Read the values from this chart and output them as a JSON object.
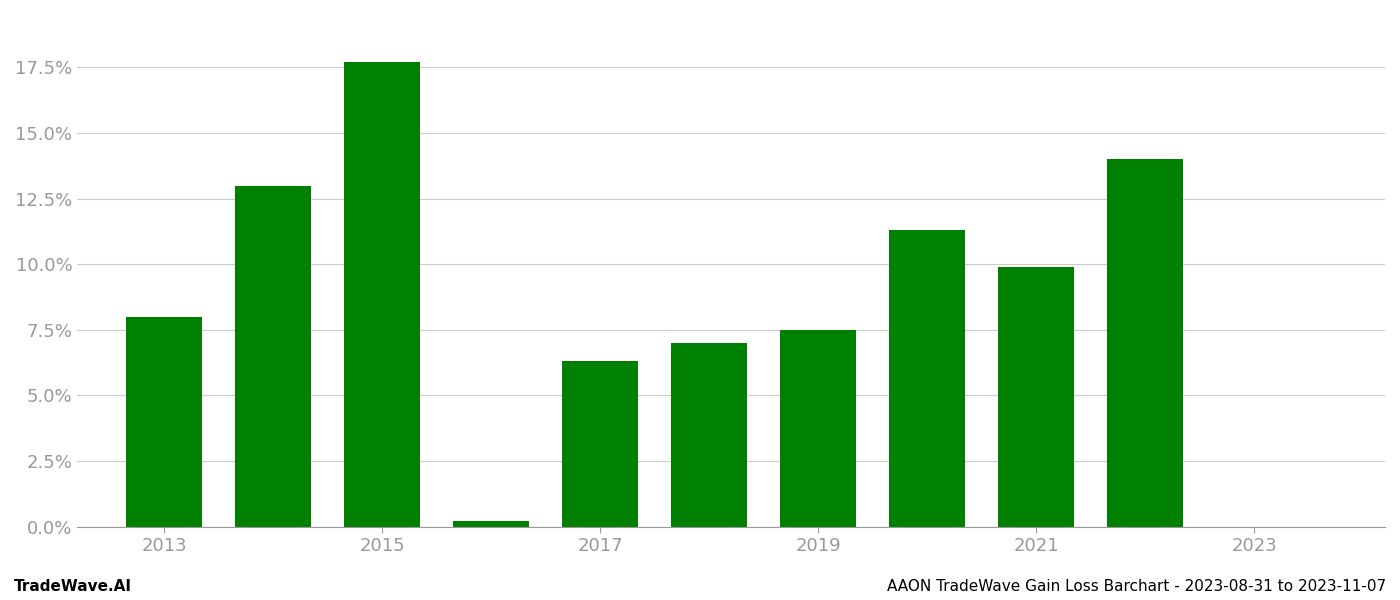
{
  "years": [
    2013,
    2014,
    2015,
    2016,
    2017,
    2018,
    2019,
    2020,
    2021,
    2022,
    2023
  ],
  "values": [
    0.08,
    0.13,
    0.177,
    0.002,
    0.063,
    0.07,
    0.075,
    0.113,
    0.099,
    0.14,
    0.0
  ],
  "bar_color": "#008000",
  "background_color": "#ffffff",
  "grid_color": "#cccccc",
  "axis_label_color": "#999999",
  "ylim": [
    0,
    0.195
  ],
  "yticks": [
    0.0,
    0.025,
    0.05,
    0.075,
    0.1,
    0.125,
    0.15,
    0.175
  ],
  "xticks": [
    2013,
    2015,
    2017,
    2019,
    2021,
    2023
  ],
  "footer_left": "TradeWave.AI",
  "footer_right": "AAON TradeWave Gain Loss Barchart - 2023-08-31 to 2023-11-07",
  "footer_fontsize": 11,
  "tick_label_fontsize": 13,
  "bar_width": 0.7
}
